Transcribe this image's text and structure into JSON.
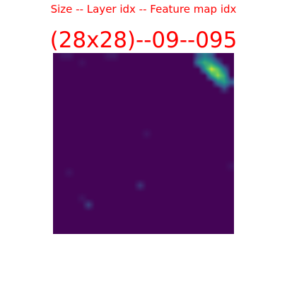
{
  "subtitle": "Size -- Layer idx -- Feature map idx",
  "title": "(28x28)--09--095",
  "colors": {
    "text": "#ff0000",
    "background": "#ffffff",
    "colormap": "viridis",
    "low": "#440154",
    "high": "#fde725"
  },
  "feature_map": {
    "grid_size": 28,
    "value_range": [
      0,
      1
    ],
    "background_value": 0.01,
    "activations": [
      {
        "row": 0,
        "col": 22,
        "value": 0.28
      },
      {
        "row": 0,
        "col": 23,
        "value": 0.42
      },
      {
        "row": 0,
        "col": 24,
        "value": 0.3
      },
      {
        "row": 1,
        "col": 22,
        "value": 0.45
      },
      {
        "row": 1,
        "col": 23,
        "value": 0.62
      },
      {
        "row": 1,
        "col": 24,
        "value": 0.55
      },
      {
        "row": 1,
        "col": 25,
        "value": 0.3
      },
      {
        "row": 2,
        "col": 23,
        "value": 0.5
      },
      {
        "row": 2,
        "col": 24,
        "value": 0.95
      },
      {
        "row": 2,
        "col": 25,
        "value": 0.72
      },
      {
        "row": 2,
        "col": 26,
        "value": 0.35
      },
      {
        "row": 3,
        "col": 24,
        "value": 0.55
      },
      {
        "row": 3,
        "col": 25,
        "value": 0.85
      },
      {
        "row": 3,
        "col": 26,
        "value": 0.6
      },
      {
        "row": 4,
        "col": 25,
        "value": 0.42
      },
      {
        "row": 4,
        "col": 26,
        "value": 0.55
      },
      {
        "row": 4,
        "col": 27,
        "value": 0.3
      },
      {
        "row": 5,
        "col": 26,
        "value": 0.22
      },
      {
        "row": 0,
        "col": 1,
        "value": 0.06
      },
      {
        "row": 0,
        "col": 2,
        "value": 0.07
      },
      {
        "row": 0,
        "col": 8,
        "value": 0.06
      },
      {
        "row": 0,
        "col": 9,
        "value": 0.07
      },
      {
        "row": 1,
        "col": 4,
        "value": 0.05
      },
      {
        "row": 12,
        "col": 14,
        "value": 0.06
      },
      {
        "row": 18,
        "col": 2,
        "value": 0.06
      },
      {
        "row": 17,
        "col": 27,
        "value": 0.05
      },
      {
        "row": 20,
        "col": 13,
        "value": 0.16
      },
      {
        "row": 23,
        "col": 5,
        "value": 0.2
      },
      {
        "row": 22,
        "col": 4,
        "value": 0.06
      }
    ]
  }
}
